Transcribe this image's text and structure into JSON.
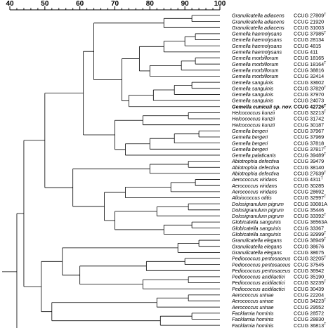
{
  "axis": {
    "ticks": [
      40,
      50,
      60,
      70,
      80,
      90,
      100
    ],
    "range": [
      40,
      100
    ]
  },
  "leaves": [
    {
      "species": "Granulicatella adiacens",
      "strain": "CCUG 27809",
      "type": "T"
    },
    {
      "species": "Granulicatella adiacens",
      "strain": "CCUG 21920"
    },
    {
      "species": "Granulicatella adiacens",
      "strain": "CCUG 31003"
    },
    {
      "species": "Gemella haemolysans",
      "strain": "CCUG 37985",
      "type": "T"
    },
    {
      "species": "Gemella haemolysans",
      "strain": "CCUG 28134"
    },
    {
      "species": "Gemella haemolysans",
      "strain": "CCUG 4815"
    },
    {
      "species": "Gemella haemolysans",
      "strain": "CCUG 411"
    },
    {
      "species": "Gemella morbillorum",
      "strain": "CCUG 18165"
    },
    {
      "species": "Gemella morbillorum",
      "strain": "CCUG 18164",
      "type": "T"
    },
    {
      "species": "Gemella morbillorum",
      "strain": "CCUG 38816"
    },
    {
      "species": "Gemella morbillorum",
      "strain": "CCUG 32414"
    },
    {
      "species": "Gemella sanguinis",
      "strain": "CCUG 33602"
    },
    {
      "species": "Gemella sanguinis",
      "strain": "CCUG 37820",
      "type": "T"
    },
    {
      "species": "Gemella sanguinis",
      "strain": "CCUG 37970"
    },
    {
      "species": "Gemella sanguinis",
      "strain": "CCUG 24073"
    },
    {
      "species": "Gemella cuniculi sp. nov.",
      "strain": "CCUG 42726",
      "type": "T",
      "bold": true
    },
    {
      "species": "Helcococcus kunzii",
      "strain": "CCUG 32213",
      "type": "T"
    },
    {
      "species": "Helcococcus kunzii",
      "strain": "CCUG 31742"
    },
    {
      "species": "Helcococcus kunzii",
      "strain": "CCUG 30187"
    },
    {
      "species": "Gemella bergeri",
      "strain": "CCUG 37967"
    },
    {
      "species": "Gemella bergeri",
      "strain": "CCUG 37969"
    },
    {
      "species": "Gemella bergeri",
      "strain": "CCUG 37818"
    },
    {
      "species": "Gemella bergeri",
      "strain": "CCUG 37817",
      "type": "T"
    },
    {
      "species": "Gemella palaticanis",
      "strain": "CCUG 39489",
      "type": "T"
    },
    {
      "species": "Abiotrophia defectiva",
      "strain": "CCUG 39479"
    },
    {
      "species": "Abiotrophia defectiva",
      "strain": "CCUG 38140"
    },
    {
      "species": "Abiotrophia defectiva",
      "strain": "CCUG 27639",
      "type": "T"
    },
    {
      "species": "Aerococcus viridans",
      "strain": "CCUG 4311",
      "type": "T"
    },
    {
      "species": "Aerococcus viridans",
      "strain": "CCUG 30285"
    },
    {
      "species": "Aerococcus viridans",
      "strain": "CCUG 28692"
    },
    {
      "species": "Alloiococcus otitis",
      "strain": "CCUG 32997",
      "type": "T"
    },
    {
      "species": "Dolosigranulum pigrum",
      "strain": "CCUG 33081A"
    },
    {
      "species": "Dolosigranulum pigrum",
      "strain": "CCUG 35446"
    },
    {
      "species": "Dolosigranulum pigrum",
      "strain": "CCUG 33392",
      "type": "T"
    },
    {
      "species": "Globicatella sanguinis",
      "strain": "CCUG 36563A"
    },
    {
      "species": "Globicatella sanguinis",
      "strain": "CCUG 33367"
    },
    {
      "species": "Globicatella sanguinis",
      "strain": "CCUG 32999",
      "type": "T"
    },
    {
      "species": "Granulicatella elegans",
      "strain": "CCUG 38949",
      "type": "T"
    },
    {
      "species": "Granulicatella elegans",
      "strain": "CCUG 38676"
    },
    {
      "species": "Granulicatella elegans",
      "strain": "CCUG 38675"
    },
    {
      "species": "Pediococcus pentosaceus",
      "strain": "CCUG 32205",
      "type": "T"
    },
    {
      "species": "Pediococcus pentosaceus",
      "strain": "CCUG 37545"
    },
    {
      "species": "Pediococcus pentosaceus",
      "strain": "CCUG 36942"
    },
    {
      "species": "Pediococcus acidilactici",
      "strain": "CCUG 35190"
    },
    {
      "species": "Pediococcus acidilactici",
      "strain": "CCUG 32235",
      "type": "T"
    },
    {
      "species": "Pediococcus acidilactici",
      "strain": "CCUG 30439"
    },
    {
      "species": "Aerococcus urinae",
      "strain": "CCUG 22204"
    },
    {
      "species": "Aerococcus urinae",
      "strain": "CCUG 34223",
      "type": "T"
    },
    {
      "species": "Aerococcus urinae",
      "strain": "CCUG 29552"
    },
    {
      "species": "Facklamia hominis",
      "strain": "CCUG 28572"
    },
    {
      "species": "Facklamia hominis",
      "strain": "CCUG 28830"
    },
    {
      "species": "Facklamia hominis",
      "strain": "CCUG 36813",
      "type": "T"
    }
  ],
  "tree": {
    "h": 42,
    "c": [
      {
        "h": 44,
        "c": [
          {
            "h": 50,
            "c": [
              {
                "h": 61,
                "c": [
                  {
                    "h": 64,
                    "c": [
                      {
                        "h": 84,
                        "c": [
                          {
                            "h": 92,
                            "c": [
                              {
                                "leaf": 0
                              },
                              {
                                "leaf": 1
                              }
                            ]
                          },
                          {
                            "leaf": 2
                          }
                        ]
                      },
                      {
                        "h": 72,
                        "c": [
                          {
                            "h": 77,
                            "c": [
                              {
                                "h": 84,
                                "c": [
                                  {
                                    "h": 90,
                                    "c": [
                                      {
                                        "h": 93,
                                        "c": [
                                          {
                                            "leaf": 3
                                          },
                                          {
                                            "leaf": 4
                                          }
                                        ]
                                      },
                                      {
                                        "leaf": 5
                                      }
                                    ]
                                  },
                                  {
                                    "leaf": 6
                                  }
                                ]
                              },
                              {
                                "h": 80,
                                "c": [
                                  {
                                    "h": 89,
                                    "c": [
                                      {
                                        "h": 93,
                                        "c": [
                                          {
                                            "leaf": 7
                                          },
                                          {
                                            "leaf": 8
                                          }
                                        ]
                                      },
                                      {
                                        "leaf": 9
                                      }
                                    ]
                                  },
                                  {
                                    "leaf": 10
                                  }
                                ]
                              }
                            ]
                          },
                          {
                            "h": 74,
                            "c": [
                              {
                                "h": 81,
                                "c": [
                                  {
                                    "h": 87,
                                    "c": [
                                      {
                                        "h": 92,
                                        "c": [
                                          {
                                            "leaf": 11
                                          },
                                          {
                                            "leaf": 12
                                          }
                                        ]
                                      },
                                      {
                                        "leaf": 13
                                      }
                                    ]
                                  },
                                  {
                                    "leaf": 14
                                  }
                                ]
                              },
                              {
                                "leaf": 15
                              }
                            ]
                          }
                        ]
                      }
                    ]
                  },
                  {
                    "h": 70,
                    "c": [
                      {
                        "h": 78,
                        "c": [
                          {
                            "h": 91,
                            "c": [
                              {
                                "leaf": 16
                              },
                              {
                                "leaf": 17
                              }
                            ]
                          },
                          {
                            "leaf": 18
                          }
                        ]
                      },
                      {
                        "h": 73,
                        "c": [
                          {
                            "h": 80,
                            "c": [
                              {
                                "h": 87,
                                "c": [
                                  {
                                    "h": 94,
                                    "c": [
                                      {
                                        "leaf": 19
                                      },
                                      {
                                        "leaf": 20
                                      }
                                    ]
                                  },
                                  {
                                    "leaf": 21
                                  }
                                ]
                              },
                              {
                                "leaf": 22
                              }
                            ]
                          },
                          {
                            "leaf": 23
                          }
                        ]
                      }
                    ]
                  }
                ]
              },
              {
                "h": 58,
                "c": [
                  {
                    "h": 80,
                    "c": [
                      {
                        "h": 91,
                        "c": [
                          {
                            "leaf": 24
                          },
                          {
                            "leaf": 25
                          }
                        ]
                      },
                      {
                        "leaf": 26
                      }
                    ]
                  },
                  {
                    "h": 67,
                    "c": [
                      {
                        "h": 73,
                        "c": [
                          {
                            "h": 86,
                            "c": [
                              {
                                "h": 93,
                                "c": [
                                  {
                                    "leaf": 27
                                  },
                                  {
                                    "leaf": 28
                                  }
                                ]
                              },
                              {
                                "leaf": 29
                              }
                            ]
                          },
                          {
                            "leaf": 30
                          }
                        ]
                      },
                      {
                        "h": 70,
                        "c": [
                          {
                            "h": 82,
                            "c": [
                              {
                                "h": 91,
                                "c": [
                                  {
                                    "leaf": 31
                                  },
                                  {
                                    "leaf": 32
                                  }
                                ]
                              },
                              {
                                "leaf": 33
                              }
                            ]
                          },
                          {
                            "h": 84,
                            "c": [
                              {
                                "h": 92,
                                "c": [
                                  {
                                    "leaf": 34
                                  },
                                  {
                                    "leaf": 35
                                  }
                                ]
                              },
                              {
                                "leaf": 36
                              }
                            ]
                          }
                        ]
                      }
                    ]
                  }
                ]
              }
            ]
          },
          {
            "h": 49,
            "c": [
              {
                "h": 55,
                "c": [
                  {
                    "h": 88,
                    "c": [
                      {
                        "h": 94,
                        "c": [
                          {
                            "leaf": 37
                          },
                          {
                            "leaf": 38
                          }
                        ]
                      },
                      {
                        "leaf": 39
                      }
                    ]
                  },
                  {
                    "h": 60,
                    "c": [
                      {
                        "h": 79,
                        "c": [
                          {
                            "h": 90,
                            "c": [
                              {
                                "leaf": 40
                              },
                              {
                                "leaf": 41
                              }
                            ]
                          },
                          {
                            "leaf": 42
                          }
                        ]
                      },
                      {
                        "h": 78,
                        "c": [
                          {
                            "h": 91,
                            "c": [
                              {
                                "leaf": 43
                              },
                              {
                                "leaf": 44
                              }
                            ]
                          },
                          {
                            "leaf": 45
                          }
                        ]
                      }
                    ]
                  }
                ]
              },
              {
                "h": 52,
                "c": [
                  {
                    "h": 82,
                    "c": [
                      {
                        "h": 91,
                        "c": [
                          {
                            "leaf": 46
                          },
                          {
                            "leaf": 47
                          }
                        ]
                      },
                      {
                        "leaf": 48
                      }
                    ]
                  },
                  {
                    "h": 83,
                    "c": [
                      {
                        "h": 92,
                        "c": [
                          {
                            "leaf": 49
                          },
                          {
                            "leaf": 50
                          }
                        ]
                      },
                      {
                        "leaf": 51
                      }
                    ]
                  }
                ]
              }
            ]
          }
        ]
      },
      {
        "leaf": -1
      }
    ]
  }
}
